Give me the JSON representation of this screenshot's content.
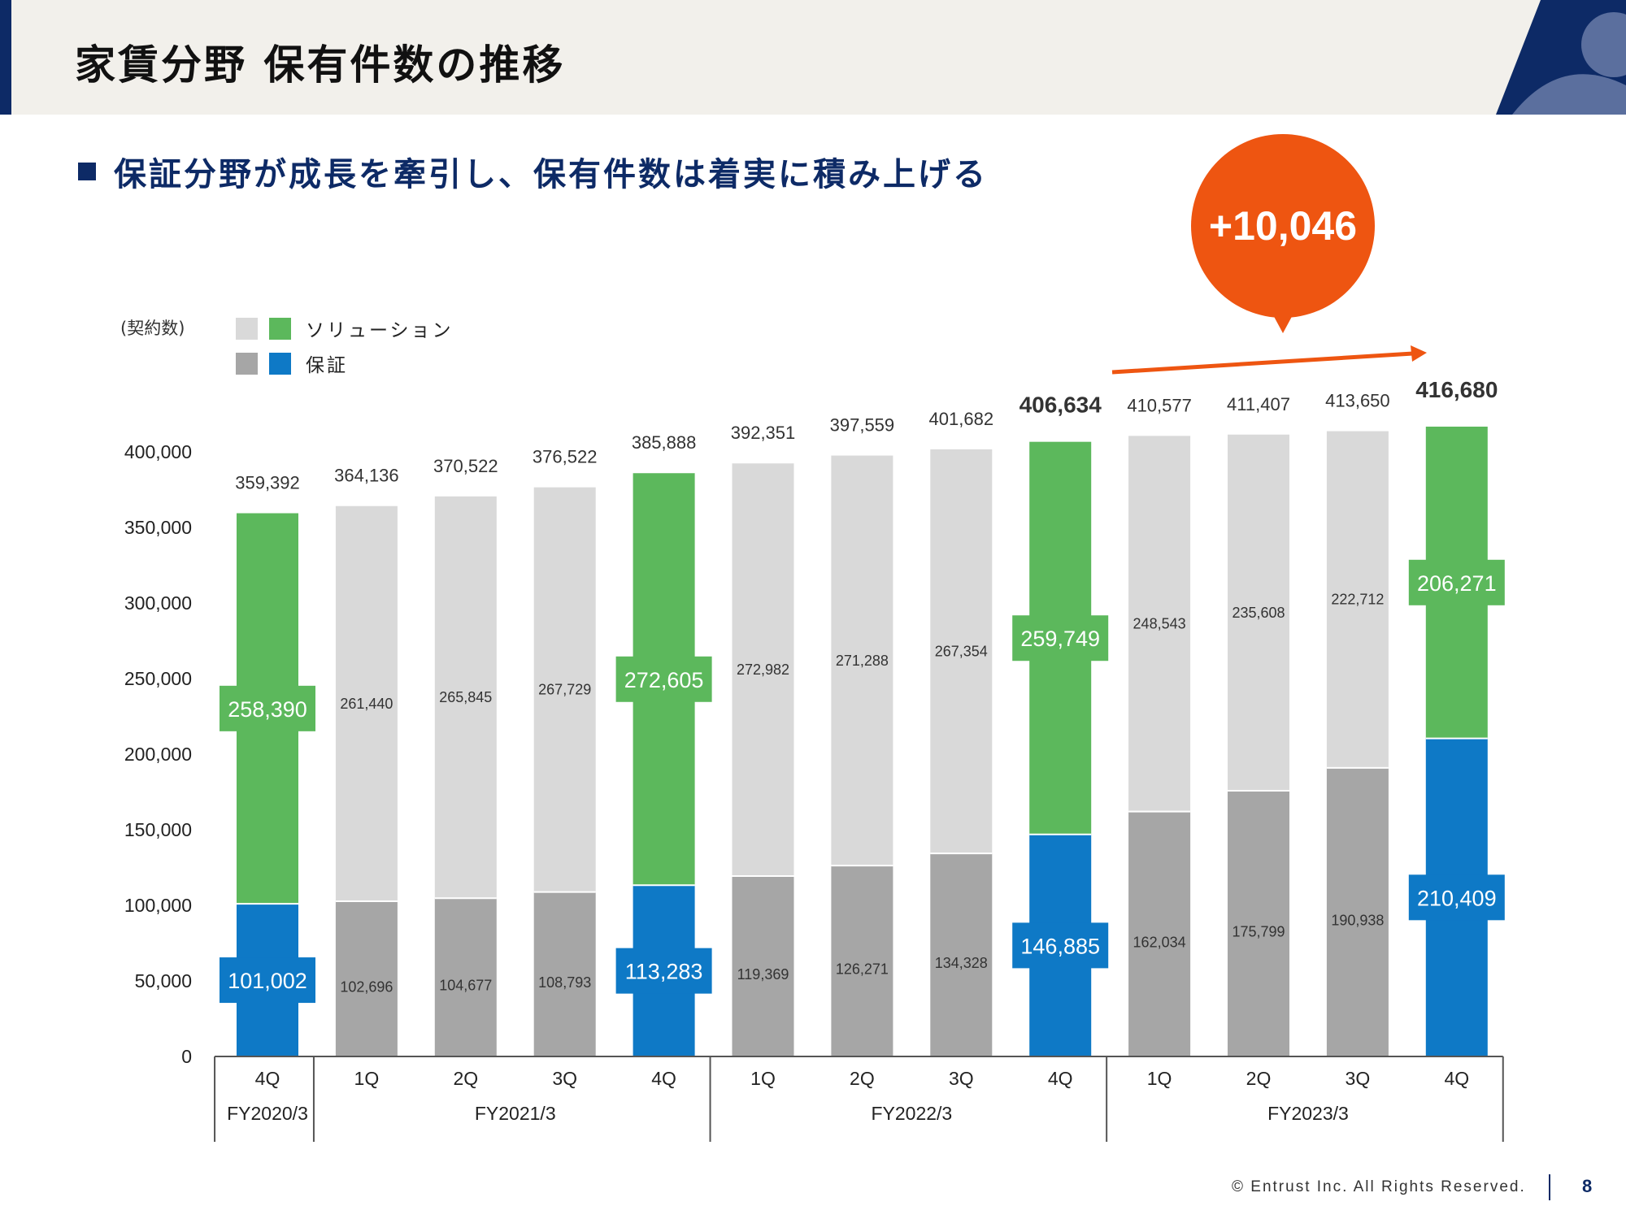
{
  "page": {
    "title": "家賃分野 保有件数の推移",
    "subtitle": "保証分野が成長を牽引し、保有件数は着実に積み上げる",
    "bubble": "+10,046",
    "footer": "© Entrust Inc. All Rights Reserved.",
    "page_number": "8",
    "unit_label": "(契約数)",
    "colors": {
      "navy": "#0d2a66",
      "guarantee": "#0e79c6",
      "solution": "#5cb85c",
      "guarantee_gray": "#a6a6a6",
      "solution_gray": "#d9d9d9",
      "accent": "#ee5511"
    }
  },
  "legend": [
    {
      "label": "ソリューション",
      "colors": [
        "#d9d9d9",
        "#5cb85c"
      ]
    },
    {
      "label": "保証",
      "colors": [
        "#a6a6a6",
        "#0e79c6"
      ]
    }
  ],
  "chart_data": {
    "type": "bar",
    "stacked": true,
    "title": "",
    "ylabel": "(契約数)",
    "ylim": [
      0,
      400000
    ],
    "yticks": [
      0,
      50000,
      100000,
      150000,
      200000,
      250000,
      300000,
      350000,
      400000
    ],
    "ytick_labels": [
      "0",
      "50,000",
      "100,000",
      "150,000",
      "200,000",
      "250,000",
      "300,000",
      "350,000",
      "400,000"
    ],
    "categories": [
      "4Q",
      "1Q",
      "2Q",
      "3Q",
      "4Q",
      "1Q",
      "2Q",
      "3Q",
      "4Q",
      "1Q",
      "2Q",
      "3Q",
      "4Q"
    ],
    "fiscal_years": [
      {
        "label": "FY2020/3",
        "count": 1
      },
      {
        "label": "FY2021/3",
        "count": 4
      },
      {
        "label": "FY2022/3",
        "count": 4
      },
      {
        "label": "FY2023/3",
        "count": 4
      }
    ],
    "series": [
      {
        "name": "保証",
        "values": [
          101002,
          102696,
          104677,
          108793,
          113283,
          119369,
          126271,
          134328,
          146885,
          162034,
          175799,
          190938,
          210409
        ],
        "labels": [
          "101,002",
          "102,696",
          "104,677",
          "108,793",
          "113,283",
          "119,369",
          "126,271",
          "134,328",
          "146,885",
          "162,034",
          "175,799",
          "190,938",
          "210,409"
        ]
      },
      {
        "name": "ソリューション",
        "values": [
          258390,
          261440,
          265845,
          267729,
          272605,
          272982,
          271288,
          267354,
          259749,
          248543,
          235608,
          222712,
          206271
        ],
        "labels": [
          "258,390",
          "261,440",
          "265,845",
          "267,729",
          "272,605",
          "272,982",
          "271,288",
          "267,354",
          "259,749",
          "248,543",
          "235,608",
          "222,712",
          "206,271"
        ]
      }
    ],
    "totals": [
      359392,
      364136,
      370522,
      376522,
      385888,
      392351,
      397559,
      401682,
      406634,
      410577,
      411407,
      413650,
      416680
    ],
    "total_labels": [
      "359,392",
      "364,136",
      "370,522",
      "376,522",
      "385,888",
      "392,351",
      "397,559",
      "401,682",
      "406,634",
      "410,577",
      "411,407",
      "413,650",
      "416,680"
    ],
    "highlighted": [
      true,
      false,
      false,
      false,
      true,
      false,
      false,
      false,
      true,
      false,
      false,
      false,
      true
    ]
  }
}
